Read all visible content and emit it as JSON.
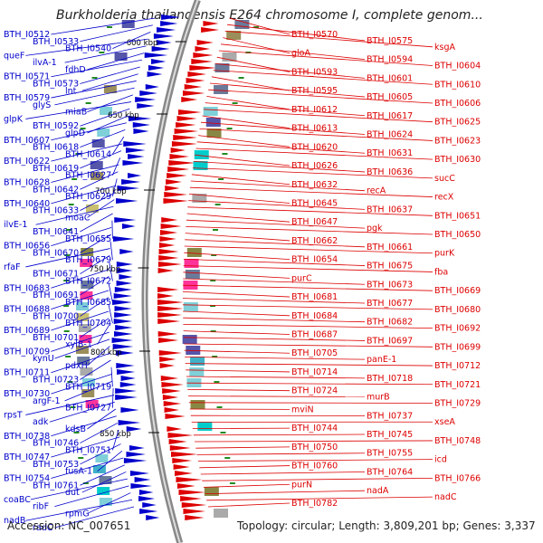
{
  "header": {
    "title": "Burkholderia thailandensis E264 chromosome I, complete genom..."
  },
  "footer": {
    "accession": "Accession: NC_007651",
    "topology": "Topology: circular; Length: 3,809,201 bp; Genes: 3,337"
  },
  "colors": {
    "plus_strand": "#0000cc",
    "minus_strand": "#dd0000",
    "backbone": "#888888",
    "tick_marks": "#228b22"
  },
  "scale_ticks": [
    "600 kbp",
    "650 kbp",
    "700 kbp",
    "750 kbp",
    "800 kbp",
    "850 kbp"
  ],
  "left_labels": [
    "BTH_I0512",
    "BTH_I0533",
    "BTH_I0540",
    "queF",
    "ilvA-1",
    "fdhD",
    "BTH_I0571",
    "BTH_I0573",
    "lnt",
    "BTH_I0579",
    "glyS",
    "miaB",
    "glpK",
    "BTH_I0592",
    "glpD",
    "BTH_I0607",
    "BTH_I0618",
    "BTH_I0614",
    "BTH_I0622",
    "BTH_I0619",
    "BTH_I0627",
    "BTH_I0628",
    "BTH_I0642",
    "BTH_I0629",
    "BTH_I0640",
    "BTH_I0633",
    "moaC",
    "ilvE-1",
    "BTH_I0641",
    "BTH_I0655",
    "BTH_I0656",
    "BTH_I0670",
    "BTH_I0679",
    "rfaF",
    "BTH_I0671",
    "BTH_I0672",
    "BTH_I0683",
    "BTH_I0691",
    "BTH_I0685",
    "BTH_I0688",
    "BTH_I0700",
    "BTH_I0704",
    "BTH_I0689",
    "BTH_I0701",
    "xylB-1",
    "BTH_I0709",
    "kynU",
    "pdxH",
    "BTH_I0711",
    "BTH_I0723",
    "BTH_I0719",
    "BTH_I0730",
    "argF-1",
    "BTH_I0727",
    "rpsT",
    "adk",
    "kdsB",
    "BTH_I0738",
    "BTH_I0746",
    "BTH_I0751",
    "BTH_I0747",
    "BTH_I0753",
    "fusA-1",
    "BTH_I0754",
    "BTH_I0761",
    "dut",
    "coaBC",
    "ribF",
    "rpmG",
    "nadB",
    "radC"
  ],
  "right_labels": [
    "BTH_I0570",
    "BTH_I0575",
    "ksgA",
    "gloA",
    "BTH_I0594",
    "BTH_I0604",
    "BTH_I0593",
    "BTH_I0601",
    "BTH_I0610",
    "BTH_I0595",
    "BTH_I0605",
    "BTH_I0606",
    "BTH_I0612",
    "BTH_I0617",
    "BTH_I0625",
    "BTH_I0613",
    "BTH_I0624",
    "BTH_I0623",
    "BTH_I0620",
    "BTH_I0631",
    "BTH_I0630",
    "BTH_I0626",
    "BTH_I0636",
    "sucC",
    "BTH_I0632",
    "recA",
    "recX",
    "BTH_I0645",
    "BTH_I0637",
    "BTH_I0651",
    "BTH_I0647",
    "pgk",
    "BTH_I0650",
    "BTH_I0662",
    "BTH_I0661",
    "purK",
    "BTH_I0654",
    "BTH_I0675",
    "fba",
    "purC",
    "BTH_I0673",
    "BTH_I0669",
    "BTH_I0681",
    "BTH_I0677",
    "BTH_I0680",
    "BTH_I0684",
    "BTH_I0682",
    "BTH_I0692",
    "BTH_I0687",
    "BTH_I0697",
    "BTH_I0699",
    "BTH_I0705",
    "panE-1",
    "BTH_I0712",
    "BTH_I0714",
    "BTH_I0718",
    "BTH_I0721",
    "BTH_I0724",
    "murB",
    "BTH_I0729",
    "mviN",
    "BTH_I0737",
    "xseA",
    "BTH_I0744",
    "BTH_I0745",
    "BTH_I0748",
    "BTH_I0750",
    "BTH_I0755",
    "icd",
    "BTH_I0760",
    "BTH_I0764",
    "BTH_I0766",
    "purN",
    "nadA",
    "nadC",
    "BTH_I0782"
  ]
}
